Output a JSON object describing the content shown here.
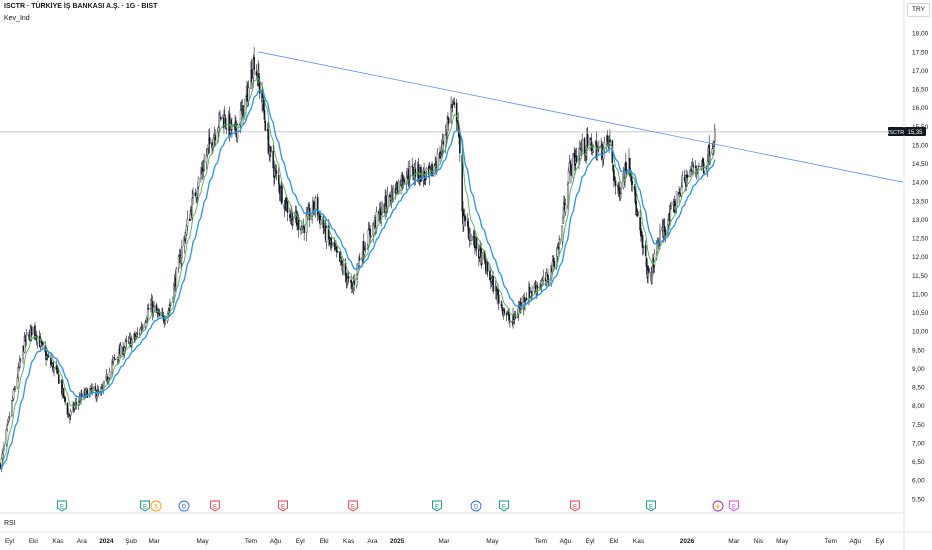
{
  "header": {
    "title": "ISCTR · TÜRKİYE İŞ BANKASI A.Ş. · 1G · BIST",
    "indicator": "Kev_Ind",
    "currency": "TRY"
  },
  "rsi_label": "RSI",
  "price_tag": {
    "symbol": "ISCTR",
    "value": "15,35"
  },
  "colors": {
    "candle": "#131722",
    "ema_fast": "#4caf50",
    "ema_slow": "#2196f3",
    "trendline": "#5b8def",
    "priceline": "#9598a1",
    "earnings": "#089981",
    "earnings_red": "#f23645",
    "dividend": "#ff9800",
    "split": "#2962ff",
    "lightning": "#9c27b0",
    "future": "#e040fb"
  },
  "events": [
    {
      "glyph": "E",
      "color": "earnings",
      "date": "Eyl-Ekl 2023"
    },
    {
      "glyph": "E",
      "color": "earnings",
      "date": "Şub 2024"
    },
    {
      "glyph": "$",
      "color": "dividend",
      "date": "Şub 2024"
    },
    {
      "glyph": "D",
      "color": "split",
      "date": "Mar 2024"
    },
    {
      "glyph": "E",
      "color": "earnings_red",
      "date": "Nis 2024"
    },
    {
      "glyph": "E",
      "color": "earnings_red",
      "date": "Ağu 2024"
    },
    {
      "glyph": "E",
      "color": "earnings_red",
      "date": "Kas 2024"
    },
    {
      "glyph": "E",
      "color": "earnings",
      "date": "Şub 2025"
    },
    {
      "glyph": "D",
      "color": "split",
      "date": "Mar 2025"
    },
    {
      "glyph": "E",
      "color": "earnings",
      "date": "Nis 2025"
    },
    {
      "glyph": "E",
      "color": "earnings_red",
      "date": "Ağu 2025"
    },
    {
      "glyph": "E",
      "color": "earnings",
      "date": "Kas 2025"
    },
    {
      "glyph": "⚡",
      "color": "lightning",
      "date": "Şub 2026"
    },
    {
      "glyph": "E",
      "color": "future",
      "date": "Şub 2026"
    }
  ],
  "chart_data": {
    "type": "candlestick",
    "symbol": "ISCTR",
    "timeframe": "1G",
    "y_ticks": [
      "5,50",
      "6,00",
      "6,50",
      "7,00",
      "7,50",
      "8,00",
      "8,50",
      "9,00",
      "9,50",
      "10,00",
      "10,50",
      "11,00",
      "11,50",
      "12,00",
      "12,50",
      "13,00",
      "13,50",
      "14,00",
      "14,50",
      "15,00",
      "15,50",
      "16,00",
      "16,50",
      "17,00",
      "17,50",
      "18,00"
    ],
    "ylim": [
      5.2,
      18.3
    ],
    "x_ticks": [
      "Eyl",
      "Eki",
      "Kas",
      "Ara",
      "2024",
      "Şub",
      "Mar",
      "May",
      "Tem",
      "Ağu",
      "Eyl",
      "Eki",
      "Kas",
      "Ara",
      "2025",
      "Mar",
      "May",
      "Tem",
      "Ağu",
      "Eyl",
      "Eki",
      "Kas",
      "2026",
      "Mar",
      "Nis",
      "May",
      "Tem",
      "Ağu",
      "Eyl"
    ],
    "x_tick_dates": [
      "2023-09-01",
      "2023-10-01",
      "2023-11-01",
      "2023-12-01",
      "2024-01-01",
      "2024-02-01",
      "2024-03-01",
      "2024-05-01",
      "2024-07-01",
      "2024-08-01",
      "2024-09-01",
      "2024-10-01",
      "2024-11-01",
      "2024-12-01",
      "2025-01-01",
      "2025-03-01",
      "2025-05-01",
      "2025-07-01",
      "2025-08-01",
      "2025-09-01",
      "2025-10-01",
      "2025-11-01",
      "2026-01-01",
      "2026-03-01",
      "2026-04-01",
      "2026-05-01",
      "2026-07-01",
      "2026-08-01",
      "2026-09-01"
    ],
    "last_price": 15.35,
    "trendline": [
      {
        "date": "2024-07-10",
        "value": 17.5
      },
      {
        "date": "2026-09-30",
        "value": 14.0
      }
    ],
    "price_path": [
      [
        "2023-08-20",
        6.3
      ],
      [
        "2023-09-05",
        8.2
      ],
      [
        "2023-09-20",
        9.7
      ],
      [
        "2023-10-01",
        10.1
      ],
      [
        "2023-10-15",
        9.4
      ],
      [
        "2023-11-01",
        8.8
      ],
      [
        "2023-11-15",
        7.7
      ],
      [
        "2023-11-25",
        8.1
      ],
      [
        "2023-12-10",
        8.4
      ],
      [
        "2023-12-25",
        8.3
      ],
      [
        "2024-01-10",
        9.2
      ],
      [
        "2024-01-25",
        9.6
      ],
      [
        "2024-02-10",
        9.9
      ],
      [
        "2024-02-25",
        10.7
      ],
      [
        "2024-03-10",
        10.3
      ],
      [
        "2024-03-20",
        10.6
      ],
      [
        "2024-04-05",
        12.2
      ],
      [
        "2024-04-20",
        13.6
      ],
      [
        "2024-05-10",
        15.0
      ],
      [
        "2024-05-25",
        15.8
      ],
      [
        "2024-06-10",
        15.3
      ],
      [
        "2024-06-25",
        16.2
      ],
      [
        "2024-07-05",
        17.3
      ],
      [
        "2024-07-15",
        16.2
      ],
      [
        "2024-07-25",
        14.7
      ],
      [
        "2024-08-05",
        13.9
      ],
      [
        "2024-08-20",
        13.1
      ],
      [
        "2024-09-05",
        12.8
      ],
      [
        "2024-09-20",
        13.4
      ],
      [
        "2024-10-05",
        12.5
      ],
      [
        "2024-10-20",
        11.9
      ],
      [
        "2024-11-05",
        11.1
      ],
      [
        "2024-11-15",
        12.0
      ],
      [
        "2024-12-01",
        12.8
      ],
      [
        "2024-12-20",
        13.5
      ],
      [
        "2025-01-10",
        14.2
      ],
      [
        "2025-01-25",
        14.3
      ],
      [
        "2025-02-10",
        14.1
      ],
      [
        "2025-02-25",
        14.8
      ],
      [
        "2025-03-10",
        16.0
      ],
      [
        "2025-03-18",
        15.8
      ],
      [
        "2025-03-25",
        13.0
      ],
      [
        "2025-04-10",
        12.3
      ],
      [
        "2025-04-25",
        11.6
      ],
      [
        "2025-05-10",
        10.8
      ],
      [
        "2025-05-25",
        10.2
      ],
      [
        "2025-06-10",
        10.9
      ],
      [
        "2025-06-25",
        11.2
      ],
      [
        "2025-07-10",
        11.4
      ],
      [
        "2025-07-25",
        12.4
      ],
      [
        "2025-08-05",
        14.3
      ],
      [
        "2025-08-20",
        14.9
      ],
      [
        "2025-09-01",
        15.0
      ],
      [
        "2025-09-15",
        14.8
      ],
      [
        "2025-09-25",
        15.1
      ],
      [
        "2025-10-05",
        13.6
      ],
      [
        "2025-10-20",
        14.7
      ],
      [
        "2025-11-01",
        12.8
      ],
      [
        "2025-11-15",
        11.3
      ],
      [
        "2025-11-25",
        12.4
      ],
      [
        "2025-12-10",
        13.0
      ],
      [
        "2025-12-25",
        13.9
      ],
      [
        "2026-01-10",
        14.4
      ],
      [
        "2026-01-25",
        14.5
      ],
      [
        "2026-02-05",
        15.35
      ]
    ]
  }
}
